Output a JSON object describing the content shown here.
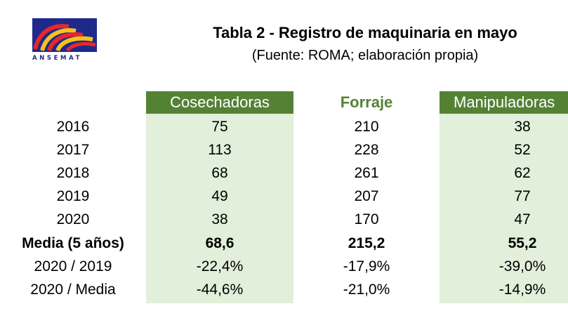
{
  "logo": {
    "icon": "ansemat-logo",
    "text": "ANSEMAT"
  },
  "title": "Tabla 2 - Registro de maquinaria en mayo",
  "subtitle": "(Fuente: ROMA; elaboración propia)",
  "table": {
    "columns": [
      "Cosechadoras",
      "Forraje",
      "Manipuladoras"
    ],
    "rows": [
      {
        "label": "2016",
        "values": [
          "75",
          "210",
          "38"
        ]
      },
      {
        "label": "2017",
        "values": [
          "113",
          "228",
          "52"
        ]
      },
      {
        "label": "2018",
        "values": [
          "68",
          "261",
          "62"
        ]
      },
      {
        "label": "2019",
        "values": [
          "49",
          "207",
          "77"
        ]
      },
      {
        "label": "2020",
        "values": [
          "38",
          "170",
          "47"
        ]
      },
      {
        "label": "Media (5 años)",
        "values": [
          "68,6",
          "215,2",
          "55,2"
        ]
      },
      {
        "label": "2020 / 2019",
        "values": [
          "-22,4%",
          "-17,9%",
          "-39,0%"
        ]
      },
      {
        "label": "2020 / Media",
        "values": [
          "-44,6%",
          "-21,0%",
          "-14,9%"
        ]
      }
    ]
  },
  "colors": {
    "header_green": "#548235",
    "column_fill": "#e2efda",
    "logo_blue": "#1d2a8c"
  }
}
